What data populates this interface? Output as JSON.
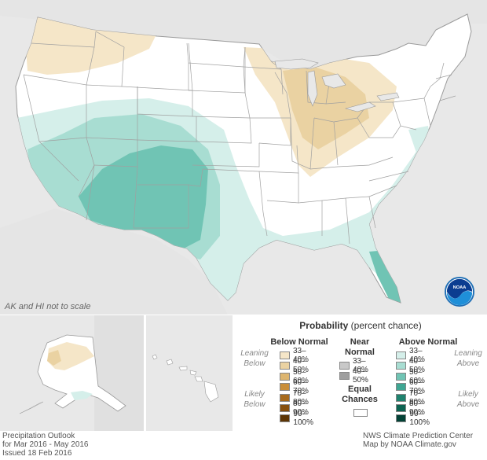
{
  "footer_left": {
    "line1": "Precipitation Outlook",
    "line2": "for Mar 2016 - May 2016",
    "line3": "Issued 18 Feb 2016"
  },
  "footer_right": {
    "line1": "NWS Climate Prediction Center",
    "line2": "Map by NOAA Climate.gov"
  },
  "scale_note": "AK and HI not to scale",
  "logo_text": "NOAA",
  "legend": {
    "title_bold": "Probability",
    "title_rest": " (percent chance)",
    "below_head": "Below Normal",
    "near_head_1": "Near",
    "near_head_2": "Normal",
    "above_head": "Above Normal",
    "leaning_below_1": "Leaning",
    "leaning_below_2": "Below",
    "likely_below_1": "Likely",
    "likely_below_2": "Below",
    "leaning_above_1": "Leaning",
    "leaning_above_2": "Above",
    "likely_above_1": "Likely",
    "likely_above_2": "Above",
    "equal_1": "Equal",
    "equal_2": "Chances",
    "below": [
      {
        "label": "33–40%",
        "color": "#f5e6c8"
      },
      {
        "label": "40–50%",
        "color": "#ead2a2"
      },
      {
        "label": "50–60%",
        "color": "#ddb56f"
      },
      {
        "label": "60–70%",
        "color": "#c98e3a"
      },
      {
        "label": "70–80%",
        "color": "#a86b1d"
      },
      {
        "label": "80–90%",
        "color": "#86500f"
      },
      {
        "label": "90–100%",
        "color": "#5c3505"
      }
    ],
    "near": [
      {
        "label": "33–40%",
        "color": "#c8c8c8"
      },
      {
        "label": "40–50%",
        "color": "#9e9e9e"
      }
    ],
    "above": [
      {
        "label": "33–40%",
        "color": "#d5efea"
      },
      {
        "label": "40–50%",
        "color": "#a8ddd2"
      },
      {
        "label": "50–60%",
        "color": "#70c4b4"
      },
      {
        "label": "60–70%",
        "color": "#3fa693"
      },
      {
        "label": "70–80%",
        "color": "#1f836f"
      },
      {
        "label": "80–90%",
        "color": "#0d6452"
      },
      {
        "label": "90–100%",
        "color": "#034236"
      }
    ]
  },
  "colors": {
    "land": "#ffffff",
    "outside": "#e8e8e8",
    "water": "#e8e8e8",
    "border": "#999999",
    "noaa_blue": "#1f6fb5"
  }
}
